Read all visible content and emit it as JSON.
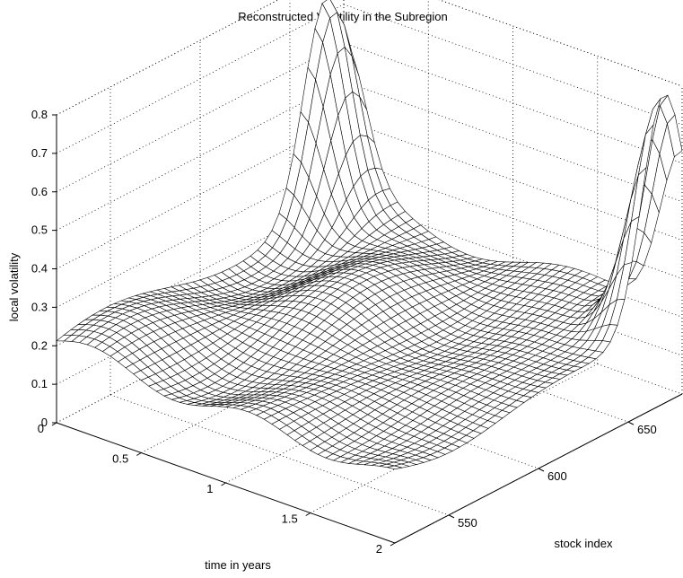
{
  "chart_data": {
    "type": "surface",
    "title": "Reconstructed Volatility  in the Subregion",
    "xlabel": "time in years",
    "ylabel": "stock index",
    "zlabel": "local volatility",
    "x_ticks": [
      "0",
      "0.5",
      "1",
      "1.5",
      "2"
    ],
    "y_ticks": [
      "550",
      "600",
      "650"
    ],
    "z_ticks": [
      "0",
      "0.1",
      "0.2",
      "0.3",
      "0.4",
      "0.5",
      "0.6",
      "0.7",
      "0.8"
    ],
    "xlim": [
      0,
      2
    ],
    "ylim": [
      520,
      680
    ],
    "zlim": [
      0,
      0.8
    ],
    "grid": true,
    "baseline_volatility": 0.2,
    "peaks": [
      {
        "time": 0.0,
        "stock_index": 670,
        "volatility": 0.72
      },
      {
        "time": 2.0,
        "stock_index": 670,
        "volatility": 0.82
      }
    ]
  }
}
